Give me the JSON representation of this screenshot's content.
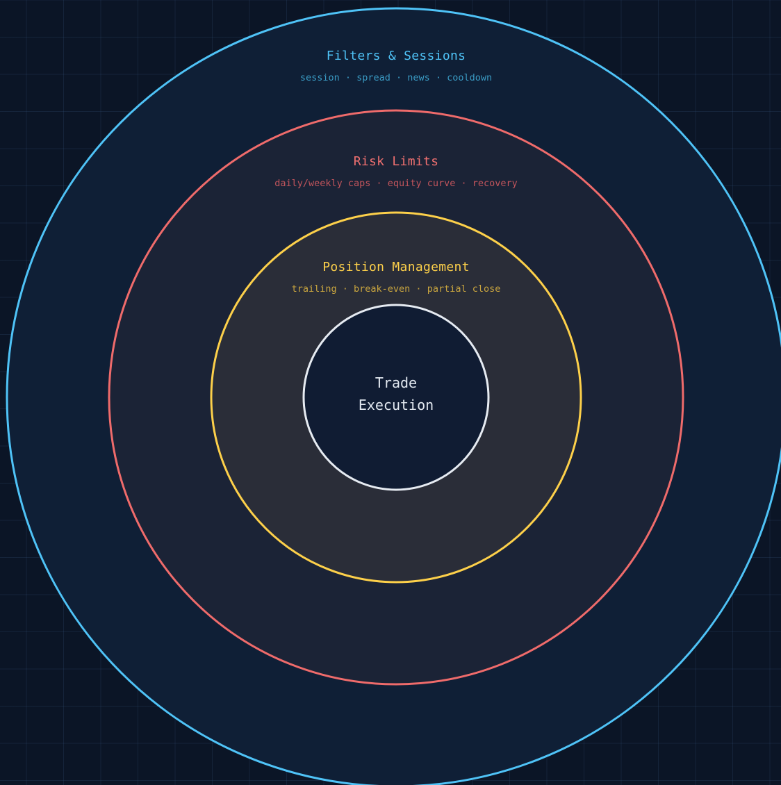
{
  "diagram": {
    "rings": [
      {
        "title": "Filters & Sessions",
        "subtitle": "session · spread · news · cooldown",
        "stroke": "#4fc3f7",
        "fill": "#0f1f36",
        "title_color": "#4fc3f7",
        "subtitle_color": "#3a9bc4"
      },
      {
        "title": "Risk Limits",
        "subtitle": "daily/weekly caps · equity curve · recovery",
        "stroke": "#ef6b6b",
        "fill": "#1b2336",
        "title_color": "#f07070",
        "subtitle_color": "#c2555c"
      },
      {
        "title": "Position Management",
        "subtitle": "trailing · break-even · partial close",
        "stroke": "#fdd04a",
        "fill": "#2a2d38",
        "title_color": "#fdd04a",
        "subtitle_color": "#c9a53f"
      }
    ],
    "core": {
      "line1": "Trade",
      "line2": "Execution",
      "stroke": "#e6ebf2",
      "fill": "#101c33"
    }
  }
}
